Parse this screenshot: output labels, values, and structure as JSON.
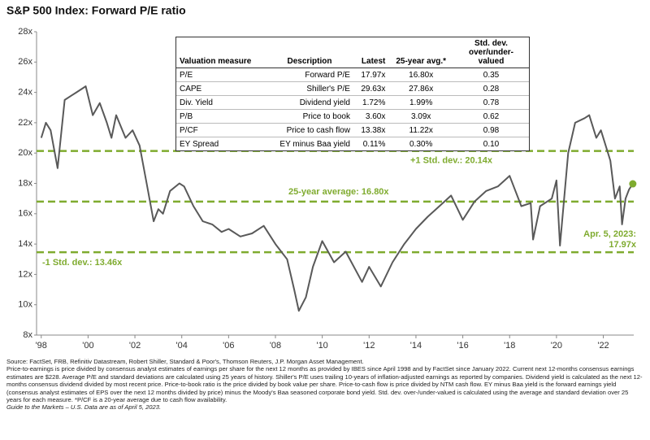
{
  "chart_data": {
    "type": "line",
    "title": "S&P 500 Index: Forward P/E ratio",
    "color": "#595959",
    "x": [
      1998.0,
      1998.2,
      1998.4,
      1998.7,
      1999.0,
      1999.3,
      1999.5,
      1999.9,
      2000.2,
      2000.5,
      2000.8,
      2001.0,
      2001.2,
      2001.6,
      2001.9,
      2002.2,
      2002.5,
      2002.8,
      2003.0,
      2003.2,
      2003.5,
      2003.9,
      2004.1,
      2004.5,
      2004.9,
      2005.3,
      2005.7,
      2006.0,
      2006.5,
      2007.0,
      2007.5,
      2008.0,
      2008.5,
      2008.8,
      2009.0,
      2009.3,
      2009.6,
      2010.0,
      2010.5,
      2011.0,
      2011.7,
      2012.0,
      2012.5,
      2013.0,
      2013.5,
      2014.0,
      2014.5,
      2015.0,
      2015.5,
      2016.0,
      2016.5,
      2017.0,
      2017.5,
      2018.0,
      2018.5,
      2018.9,
      2019.0,
      2019.3,
      2019.8,
      2020.0,
      2020.15,
      2020.5,
      2020.8,
      2021.2,
      2021.4,
      2021.7,
      2021.9,
      2022.3,
      2022.5,
      2022.7,
      2022.8,
      2022.95,
      2023.1,
      2023.26
    ],
    "values": [
      21.0,
      22.0,
      21.5,
      19.0,
      23.5,
      23.8,
      24.0,
      24.4,
      22.5,
      23.3,
      22.0,
      21.0,
      22.5,
      21.0,
      21.5,
      20.5,
      18.0,
      15.5,
      16.3,
      16.0,
      17.5,
      18.0,
      17.8,
      16.5,
      15.5,
      15.3,
      14.8,
      15.0,
      14.5,
      14.7,
      15.2,
      14.0,
      13.0,
      11.0,
      9.6,
      10.5,
      12.5,
      14.2,
      12.8,
      13.5,
      11.5,
      12.5,
      11.2,
      12.8,
      14.0,
      15.0,
      15.8,
      16.5,
      17.2,
      15.6,
      16.8,
      17.5,
      17.8,
      18.5,
      16.5,
      16.7,
      14.3,
      16.5,
      17.0,
      18.2,
      13.9,
      20.0,
      22.0,
      22.3,
      22.5,
      21.0,
      21.5,
      19.5,
      17.0,
      17.8,
      15.3,
      17.0,
      17.6,
      17.97
    ],
    "xlim": [
      1997.8,
      2023.3
    ],
    "ylim": [
      8,
      28
    ],
    "xticks": [
      {
        "value": 1998,
        "label": "'98"
      },
      {
        "value": 2000,
        "label": "'00"
      },
      {
        "value": 2002,
        "label": "'02"
      },
      {
        "value": 2004,
        "label": "'04"
      },
      {
        "value": 2006,
        "label": "'06"
      },
      {
        "value": 2008,
        "label": "'08"
      },
      {
        "value": 2010,
        "label": "'10"
      },
      {
        "value": 2012,
        "label": "'12"
      },
      {
        "value": 2014,
        "label": "'14"
      },
      {
        "value": 2016,
        "label": "'16"
      },
      {
        "value": 2018,
        "label": "'18"
      },
      {
        "value": 2020,
        "label": "'20"
      },
      {
        "value": 2022,
        "label": "'22"
      }
    ],
    "yticks": [
      {
        "value": 8,
        "label": "8x"
      },
      {
        "value": 10,
        "label": "10x"
      },
      {
        "value": 12,
        "label": "12x"
      },
      {
        "value": 14,
        "label": "14x"
      },
      {
        "value": 16,
        "label": "16x"
      },
      {
        "value": 18,
        "label": "18x"
      },
      {
        "value": 20,
        "label": "20x"
      },
      {
        "value": 22,
        "label": "22x"
      },
      {
        "value": 24,
        "label": "24x"
      },
      {
        "value": 26,
        "label": "26x"
      },
      {
        "value": 28,
        "label": "28x"
      }
    ],
    "grid": false,
    "reference_lines": [
      {
        "value": 20.14,
        "label": "+1 Std. dev.: 20.14x",
        "color": "#7fab2f"
      },
      {
        "value": 16.8,
        "label": "25-year average: 16.80x",
        "color": "#7fab2f"
      },
      {
        "value": 13.46,
        "label": "-1 Std. dev.: 13.46x",
        "color": "#7fab2f"
      }
    ],
    "last_point_label": [
      "Apr. 5, 2023:",
      "17.97x"
    ],
    "table": {
      "columns": [
        "Valuation measure",
        "Description",
        "Latest",
        "25-year avg.*",
        "Std. dev. over/under-valued"
      ],
      "rows": [
        [
          "P/E",
          "Forward P/E",
          "17.97x",
          "16.80x",
          "0.35"
        ],
        [
          "CAPE",
          "Shiller's P/E",
          "29.63x",
          "27.86x",
          "0.28"
        ],
        [
          "Div. Yield",
          "Dividend yield",
          "1.72%",
          "1.99%",
          "0.78"
        ],
        [
          "P/B",
          "Price to book",
          "3.60x",
          "3.09x",
          "0.62"
        ],
        [
          "P/CF",
          "Price to cash flow",
          "13.38x",
          "11.22x",
          "0.98"
        ],
        [
          "EY Spread",
          "EY minus Baa yield",
          "0.11%",
          "0.30%",
          "0.10"
        ]
      ]
    },
    "footnote_lines": [
      "Source: FactSet, FRB, Refinitiv Datastream, Robert Shiller, Standard & Poor's, Thomson Reuters, J.P. Morgan Asset Management.",
      "Price-to-earnings is price divided by consensus analyst estimates of earnings per share for the next 12 months as provided by IBES since April 1998 and by FactSet since January 2022. Current next 12-months consensus earnings estimates are $228. Average P/E and standard deviations are calculated using 25 years of history. Shiller's P/E uses trailing 10-years of inflation-adjusted earnings as reported by companies. Dividend yield is calculated as the next 12-months consensus dividend divided by most recent price. Price-to-book ratio is the price divided by book value per share. Price-to-cash flow is price divided by NTM cash flow. EY minus Baa yield is the forward earnings yield (consensus analyst estimates of EPS over the next 12 months divided by price) minus the Moody's Baa seasoned corporate bond yield. Std. dev. over-/under-valued is calculated using the average and standard deviation over 25 years for each measure. *P/CF is a 20-year average due to cash flow availability.",
      "Guide to the Markets – U.S. Data are as of April 5, 2023."
    ]
  }
}
